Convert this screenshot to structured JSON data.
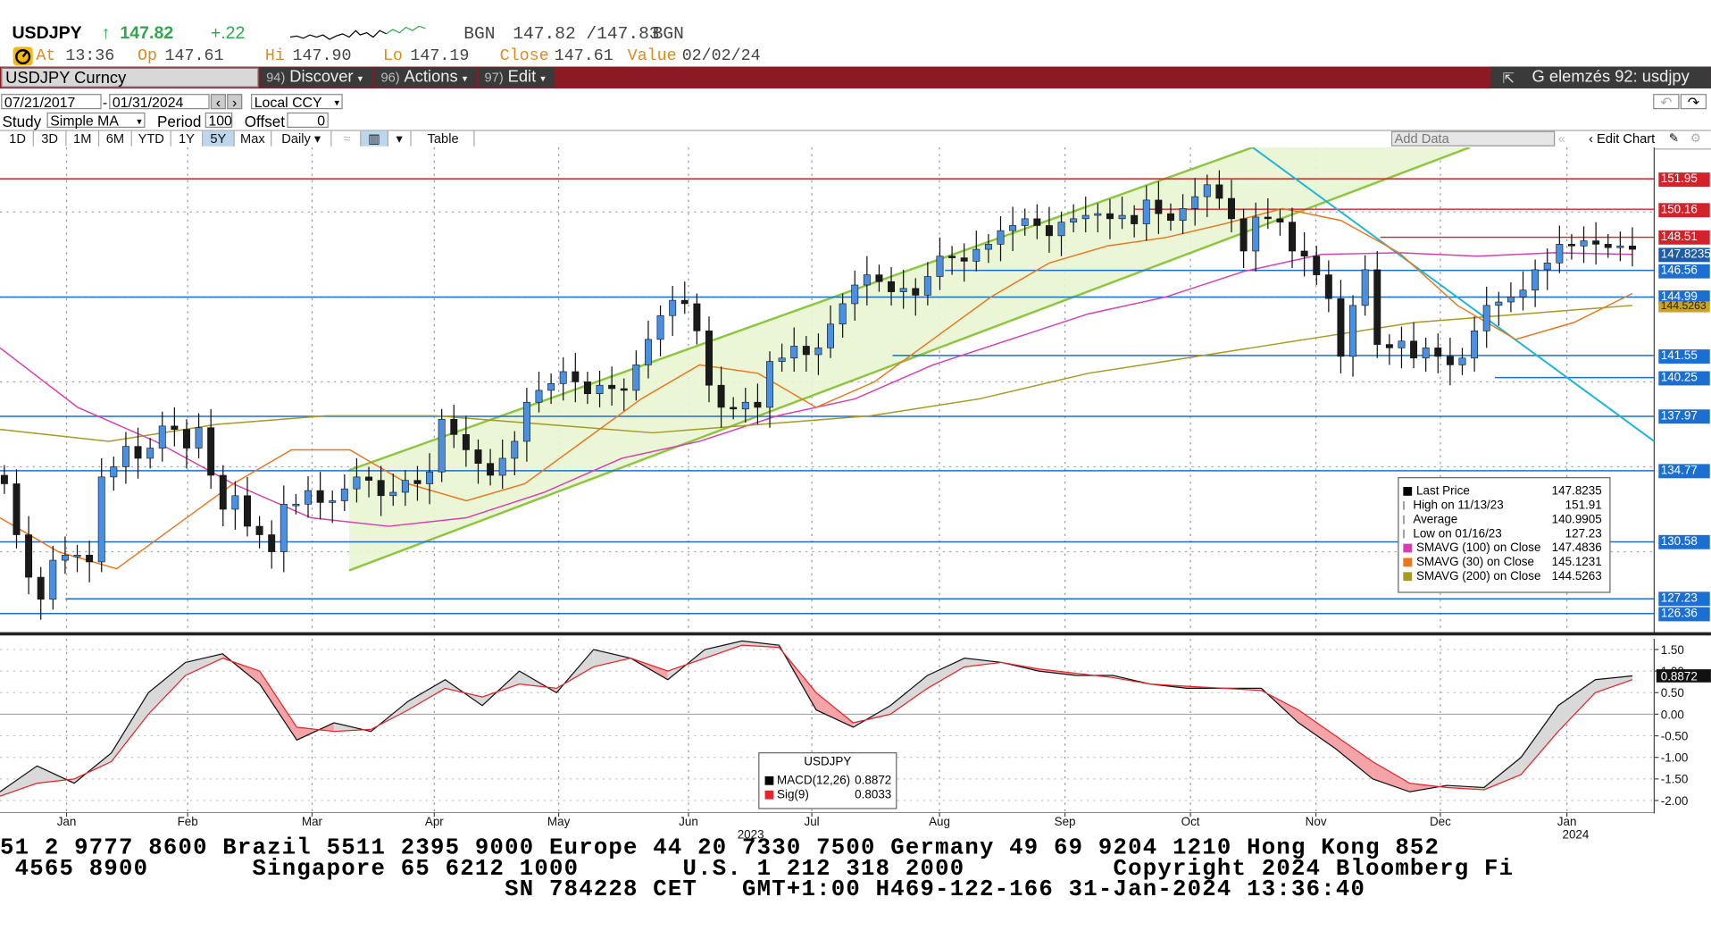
{
  "header": {
    "ticker": "USDJPY",
    "last_arrow": "↑",
    "last": "147.82",
    "change": "+.22",
    "source1": "BGN",
    "bid_ask": "147.82 /147.83",
    "source2": "BGN",
    "at_label": "At",
    "at_value": "13:36",
    "op_label": "Op",
    "op_value": "147.61",
    "hi_label": "Hi",
    "hi_value": "147.90",
    "lo_label": "Lo",
    "lo_value": "147.19",
    "close_label": "Close",
    "close_value": "147.61",
    "value_label": "Value",
    "value_value": "02/02/24"
  },
  "command": {
    "security": "USDJPY Curncy",
    "discover_num": "94)",
    "discover": "Discover",
    "actions_num": "96)",
    "actions": "Actions",
    "edit_num": "97)",
    "edit": "Edit",
    "title": "G elemzés 92: usdjpy"
  },
  "controls": {
    "start_date": "07/21/2017",
    "end_date": "01/31/2024",
    "currency": "Local CCY",
    "study_label": "Study",
    "study_value": "Simple MA",
    "period_label": "Period",
    "period_value": "100",
    "offset_label": "Offset",
    "offset_value": "0",
    "tabs": [
      "1D",
      "3D",
      "1M",
      "6M",
      "YTD",
      "1Y",
      "5Y",
      "Max"
    ],
    "active_tab": "5Y",
    "frequency": "Daily",
    "table_label": "Table",
    "add_data": "Add Data",
    "edit_chart": "Edit Chart"
  },
  "price_levels": [
    {
      "label": "151.95",
      "value": 151.95,
      "color": "#d2232a"
    },
    {
      "label": "150.16",
      "value": 150.16,
      "color": "#d2232a"
    },
    {
      "label": "148.51",
      "value": 148.51,
      "color": "#d2232a"
    },
    {
      "label": "146.56",
      "value": 146.56,
      "color": "#1c6fd1"
    },
    {
      "label": "144.99",
      "value": 144.99,
      "color": "#1c6fd1"
    },
    {
      "label": "141.55",
      "value": 141.55,
      "color": "#1c6fd1"
    },
    {
      "label": "140.25",
      "value": 140.25,
      "color": "#1c6fd1"
    },
    {
      "label": "137.97",
      "value": 137.97,
      "color": "#1c6fd1"
    },
    {
      "label": "134.77",
      "value": 134.77,
      "color": "#1c6fd1"
    },
    {
      "label": "130.58",
      "value": 130.58,
      "color": "#1c6fd1"
    },
    {
      "label": "127.23",
      "value": 127.23,
      "color": "#1c6fd1"
    },
    {
      "label": "126.36",
      "value": 126.36,
      "color": "#1c6fd1"
    }
  ],
  "overlap_labels": {
    "last": "147.8235",
    "sma200": "144.5263"
  },
  "macd_ticks": [
    "1.50",
    "1.00",
    "0.50",
    "0.00",
    "-0.50",
    "-1.00",
    "-1.50",
    "-2.00"
  ],
  "macd_last_label": "0.8872",
  "x_months": [
    "Jan",
    "Feb",
    "Mar",
    "Apr",
    "May",
    "Jun",
    "Jul",
    "Aug",
    "Sep",
    "Oct",
    "Nov",
    "Dec",
    "Jan"
  ],
  "x_years": [
    "2023",
    "2024"
  ],
  "legend": {
    "rows": [
      {
        "label": "Last Price",
        "value": "147.8235",
        "color": "#000000"
      },
      {
        "label": "High on 11/13/23",
        "value": "151.91",
        "color": ""
      },
      {
        "label": "Average",
        "value": "140.9905",
        "color": ""
      },
      {
        "label": "Low on 01/16/23",
        "value": "127.23",
        "color": ""
      },
      {
        "label": "SMAVG (100)  on Close",
        "value": "147.4836",
        "color": "#d63fb0"
      },
      {
        "label": "SMAVG (30)  on Close",
        "value": "145.1231",
        "color": "#e8771e"
      },
      {
        "label": "SMAVG (200)  on Close",
        "value": "144.5263",
        "color": "#a49a24"
      }
    ]
  },
  "macd_legend": {
    "title": "USDJPY",
    "rows": [
      {
        "label": "MACD(12,26)",
        "value": "0.8872",
        "color": "#000000"
      },
      {
        "label": "Sig(9)",
        "value": "0.8033",
        "color": "#e8232a"
      }
    ]
  },
  "footer": {
    "line1": "51 2 9777 8600 Brazil 5511 2395 9000 Europe 44 20 7330 7500 Germany 49 69 9204 1210 Hong Kong 852",
    "line2": " 4565 8900       Singapore 65 6212 1000       U.S. 1 212 318 2000          Copyright 2024 Bloomberg Fi",
    "line3": "                                  SN 784228 CET   GMT+1:00 H469-122-166 31-Jan-2024 13:36:40"
  },
  "chart_data": {
    "type": "line",
    "title": "",
    "xlabel": "",
    "ylabel": "",
    "ylim": [
      125.2,
      153.8
    ],
    "price_series": [
      [
        134.0,
        131.0,
        128.5,
        127.2,
        129.5,
        129.8,
        129.8,
        129.4,
        134.4,
        135.0,
        136.2,
        135.5,
        136.1,
        137.4,
        137.2,
        136.1,
        137.3,
        134.5,
        132.5,
        133.3,
        131.5,
        131.0,
        130.0,
        132.8,
        132.8,
        133.6,
        132.9,
        133.0,
        133.7,
        134.4,
        134.2,
        133.3,
        133.5,
        134.2,
        134.0,
        134.7,
        137.8,
        136.9,
        136.0,
        135.2,
        134.5,
        135.5,
        136.5,
        138.8,
        139.5,
        139.9,
        140.6,
        140.0,
        139.3,
        139.8,
        139.6,
        139.5,
        141.0,
        142.5,
        143.9,
        144.8,
        144.6,
        143.0,
        139.8,
        138.5,
        138.4,
        138.8,
        138.5,
        141.2,
        141.4,
        142.1,
        141.6,
        142.0,
        143.4,
        144.6,
        145.7,
        146.3,
        145.9,
        145.3,
        145.5,
        145.1,
        146.2,
        147.4,
        147.3,
        147.1,
        147.8,
        148.1,
        148.9,
        149.2,
        149.6,
        149.2,
        148.6,
        149.4,
        149.6,
        149.8,
        149.9,
        149.6,
        149.8,
        149.3,
        150.7,
        149.9,
        149.5,
        150.2,
        150.9,
        151.6,
        150.8,
        149.6,
        147.7,
        149.7,
        149.6,
        149.4,
        147.7,
        147.4,
        146.3,
        144.9,
        141.5,
        144.5,
        146.6,
        142.2,
        142.0,
        142.4,
        141.4,
        142.0,
        141.5,
        141.0,
        141.4,
        143.0,
        144.5,
        144.7,
        145.0,
        145.4,
        146.6,
        147.0,
        148.1,
        148.0,
        148.3,
        148.1,
        147.9,
        148.0,
        147.8
      ],
      null
    ],
    "sma30_series": [
      132.0,
      130.0,
      129.0,
      131.5,
      134.0,
      136.0,
      136.0,
      134.0,
      133.0,
      134.0,
      136.5,
      139.0,
      141.0,
      140.5,
      138.5,
      140.0,
      142.5,
      145.0,
      147.0,
      148.0,
      148.5,
      149.3,
      150.2,
      149.5,
      147.6,
      144.5,
      142.5,
      143.5,
      145.2
    ],
    "sma100_series": [
      142.0,
      138.5,
      136.5,
      134.0,
      132.0,
      131.5,
      132.0,
      133.5,
      135.5,
      136.5,
      138.0,
      139.0,
      141.0,
      142.5,
      144.0,
      145.0,
      146.5,
      147.5,
      147.6,
      147.4,
      147.6,
      147.5
    ],
    "sma200_series": [
      137.2,
      136.5,
      137.5,
      138.0,
      138.0,
      137.5,
      137.0,
      137.5,
      138.0,
      139.0,
      140.5,
      141.5,
      142.5,
      143.5,
      144.0,
      144.5
    ],
    "macd": {
      "macd_values": [
        -1.8,
        -1.2,
        -1.6,
        -0.9,
        0.5,
        1.2,
        1.4,
        0.7,
        -0.6,
        -0.2,
        -0.4,
        0.3,
        0.8,
        0.2,
        1.0,
        0.5,
        1.5,
        1.3,
        0.8,
        1.5,
        1.7,
        1.6,
        0.1,
        -0.3,
        0.2,
        0.9,
        1.3,
        1.2,
        1.0,
        0.9,
        0.9,
        0.7,
        0.6,
        0.6,
        0.6,
        -0.2,
        -0.8,
        -1.5,
        -1.8,
        -1.65,
        -1.7,
        -1.0,
        0.2,
        0.8,
        0.89
      ],
      "signal_values": [
        -1.9,
        -1.6,
        -1.5,
        -1.1,
        0.0,
        0.9,
        1.3,
        1.0,
        -0.3,
        -0.4,
        -0.35,
        0.1,
        0.6,
        0.4,
        0.7,
        0.6,
        1.1,
        1.3,
        1.0,
        1.3,
        1.6,
        1.55,
        0.5,
        -0.2,
        0.0,
        0.6,
        1.1,
        1.2,
        1.05,
        0.95,
        0.85,
        0.7,
        0.65,
        0.6,
        0.55,
        0.1,
        -0.5,
        -1.1,
        -1.6,
        -1.7,
        -1.75,
        -1.4,
        -0.4,
        0.5,
        0.8
      ],
      "ylim": [
        -2.3,
        1.75
      ]
    },
    "grid": true,
    "legend_placement": "bottom-right"
  },
  "colors": {
    "up": "#4a90e2",
    "down": "#1a1a1a",
    "channel": "#8cc63f",
    "channel_fill": "#e8f5d0",
    "downtrend": "#1cb5d8",
    "sma30": "#e8771e",
    "sma100": "#d63fb0",
    "sma200": "#a49a24"
  }
}
